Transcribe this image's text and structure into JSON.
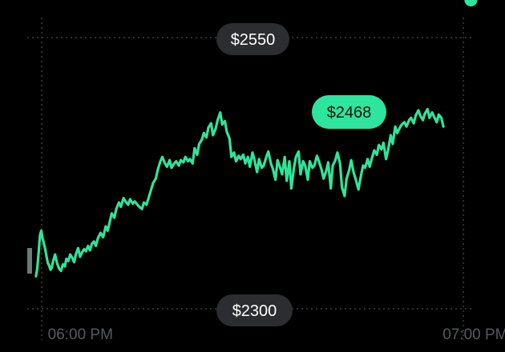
{
  "chart_data": {
    "type": "line",
    "title": "",
    "xlabel": "",
    "ylabel": "",
    "ylim": [
      2300,
      2550
    ],
    "y_range_labels": {
      "max": "$2550",
      "min": "$2300"
    },
    "current_value_label": "$2468",
    "current_value": 2468,
    "x_ticks": [
      {
        "label": "06:00 PM",
        "minute": 0
      },
      {
        "label": "07:00 PM",
        "minute": 60
      }
    ],
    "x_domain_minutes": [
      -3,
      64
    ],
    "grid": "dotted horizontal lines at min and max, dotted vertical lines at plot edges",
    "line_color": "#2ee59d",
    "series": [
      {
        "minutes": [
          -2.4,
          -2.2,
          -2.1,
          -2.0,
          -1.8,
          -1.6,
          -1.4,
          -1.2,
          -1.0,
          -0.8,
          -0.6,
          -0.4,
          -0.2,
          0.0,
          0.2,
          0.5,
          0.8,
          1.1,
          1.4,
          1.7,
          2.0,
          2.2,
          2.5,
          2.8,
          3.1,
          3.4,
          3.7,
          4.0,
          4.3,
          4.6,
          4.9,
          5.2,
          5.5,
          5.8,
          6.1,
          6.4,
          6.7,
          7.0,
          7.4,
          7.8,
          8.2,
          8.5,
          8.8,
          9.1,
          9.5,
          9.8,
          10.2,
          10.5,
          10.9,
          11.2,
          11.6,
          11.9,
          12.3,
          12.6,
          13.0,
          13.3,
          13.7,
          14.0,
          14.4,
          14.7,
          15.1,
          15.4,
          15.8,
          16.1,
          16.5,
          16.8,
          17.2,
          17.5,
          17.9,
          18.2,
          18.6,
          18.9,
          19.3,
          19.6,
          20.0,
          20.3,
          20.7,
          21.0,
          21.4,
          21.7,
          22.1,
          22.4,
          22.8,
          23.1,
          23.5,
          23.8,
          24.2,
          24.5,
          24.9,
          25.2,
          25.6,
          25.9,
          26.3,
          26.6,
          27.0,
          27.3,
          27.7,
          28.0,
          28.4,
          28.7,
          29.1,
          29.4,
          29.8,
          30.1,
          30.5,
          30.8,
          31.2,
          31.5,
          31.9,
          32.2,
          32.6,
          32.9,
          33.3,
          33.6,
          34.0,
          34.3,
          34.7,
          35.0,
          35.4,
          35.7,
          36.1,
          36.4,
          36.8,
          37.1,
          37.5,
          37.8,
          38.2,
          38.5,
          38.9,
          39.2,
          39.6,
          39.9,
          40.3,
          40.6,
          41.0,
          41.3,
          41.7,
          42.0,
          42.4,
          42.7,
          43.1,
          43.4,
          43.8,
          44.1,
          44.5,
          44.8,
          45.2,
          45.5,
          45.9,
          46.2,
          46.6,
          46.9,
          47.3,
          47.6,
          48.0,
          48.3,
          48.7,
          49.0,
          49.4,
          49.7,
          50.1,
          50.4,
          50.8,
          51.1,
          51.5,
          51.8,
          52.2,
          52.5,
          52.9,
          53.2,
          53.6,
          53.9,
          54.3,
          54.6,
          55.0,
          55.3,
          55.7,
          56.0,
          56.4,
          56.7,
          57.1,
          57.4,
          57.8,
          58.1,
          58.5,
          58.8,
          59.2,
          59.5,
          59.9,
          60.2,
          60.6,
          60.9,
          61.3,
          61.6,
          62.0,
          62.3,
          62.6,
          62.9,
          63.2
        ],
        "values": [
          2330,
          2338,
          2345,
          2352,
          2368,
          2372,
          2365,
          2360,
          2355,
          2348,
          2342,
          2340,
          2336,
          2338,
          2344,
          2350,
          2342,
          2337,
          2335,
          2341,
          2339,
          2346,
          2344,
          2350,
          2347,
          2343,
          2351,
          2356,
          2348,
          2352,
          2355,
          2353,
          2358,
          2354,
          2360,
          2362,
          2358,
          2365,
          2370,
          2366,
          2376,
          2372,
          2380,
          2388,
          2384,
          2392,
          2398,
          2394,
          2402,
          2399,
          2396,
          2401,
          2397,
          2399,
          2396,
          2394,
          2392,
          2398,
          2396,
          2402,
          2410,
          2416,
          2420,
          2428,
          2436,
          2440,
          2434,
          2431,
          2437,
          2430,
          2434,
          2436,
          2432,
          2437,
          2435,
          2440,
          2436,
          2438,
          2434,
          2448,
          2442,
          2452,
          2456,
          2462,
          2458,
          2467,
          2471,
          2460,
          2466,
          2474,
          2481,
          2470,
          2473,
          2463,
          2457,
          2440,
          2444,
          2436,
          2441,
          2438,
          2442,
          2434,
          2440,
          2431,
          2444,
          2437,
          2426,
          2438,
          2430,
          2432,
          2440,
          2445,
          2434,
          2429,
          2419,
          2437,
          2430,
          2424,
          2440,
          2418,
          2436,
          2411,
          2430,
          2440,
          2445,
          2424,
          2436,
          2432,
          2419,
          2436,
          2430,
          2432,
          2441,
          2436,
          2428,
          2420,
          2427,
          2435,
          2411,
          2432,
          2437,
          2444,
          2434,
          2412,
          2404,
          2420,
          2428,
          2437,
          2425,
          2419,
          2410,
          2420,
          2432,
          2430,
          2438,
          2431,
          2440,
          2446,
          2442,
          2451,
          2447,
          2453,
          2438,
          2446,
          2460,
          2452,
          2468,
          2462,
          2467,
          2470,
          2472,
          2468,
          2474,
          2476,
          2471,
          2478,
          2483,
          2478,
          2474,
          2480,
          2484,
          2476,
          2481,
          2477,
          2472,
          2479,
          2476,
          2468
        ]
      }
    ]
  }
}
